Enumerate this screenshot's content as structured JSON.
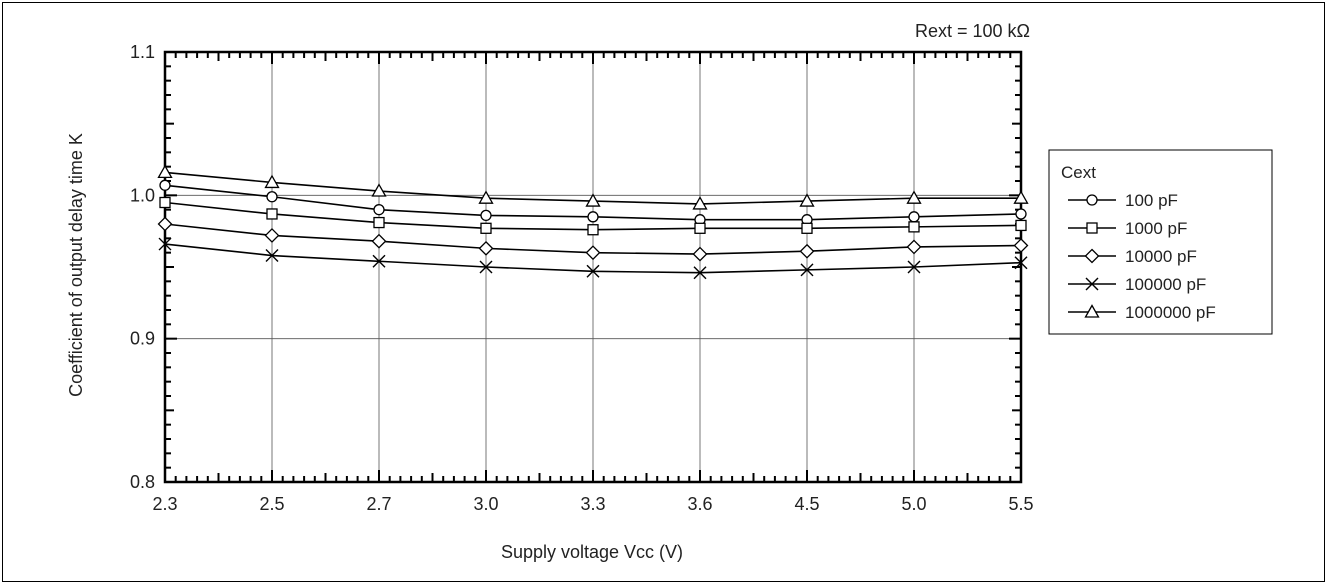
{
  "chart_data": {
    "type": "line",
    "annotation": "Rext = 100 kΩ",
    "xlabel": "Supply voltage Vcc (V)",
    "ylabel": "Coefficient of output delay time K",
    "categories": [
      "2.3",
      "2.5",
      "2.7",
      "3.0",
      "3.3",
      "3.6",
      "4.5",
      "5.0",
      "5.5"
    ],
    "ylim": [
      0.8,
      1.1
    ],
    "yticks": [
      "0.8",
      "0.9",
      "1.0",
      "1.1"
    ],
    "grid": true,
    "legend_title": "Cext",
    "legend_position": "right",
    "series": [
      {
        "name": "100 pF",
        "marker": "circle",
        "values": [
          1.007,
          0.999,
          0.99,
          0.986,
          0.985,
          0.983,
          0.983,
          0.985,
          0.987
        ]
      },
      {
        "name": "1000 pF",
        "marker": "square",
        "values": [
          0.995,
          0.987,
          0.981,
          0.977,
          0.976,
          0.977,
          0.977,
          0.978,
          0.979
        ]
      },
      {
        "name": "10000 pF",
        "marker": "diamond",
        "values": [
          0.98,
          0.972,
          0.968,
          0.963,
          0.96,
          0.959,
          0.961,
          0.964,
          0.965
        ]
      },
      {
        "name": "100000 pF",
        "marker": "x",
        "values": [
          0.966,
          0.958,
          0.954,
          0.95,
          0.947,
          0.946,
          0.948,
          0.95,
          0.953
        ]
      },
      {
        "name": "1000000 pF",
        "marker": "triangle",
        "values": [
          1.016,
          1.009,
          1.003,
          0.998,
          0.996,
          0.994,
          0.996,
          0.998,
          0.998
        ]
      }
    ]
  }
}
